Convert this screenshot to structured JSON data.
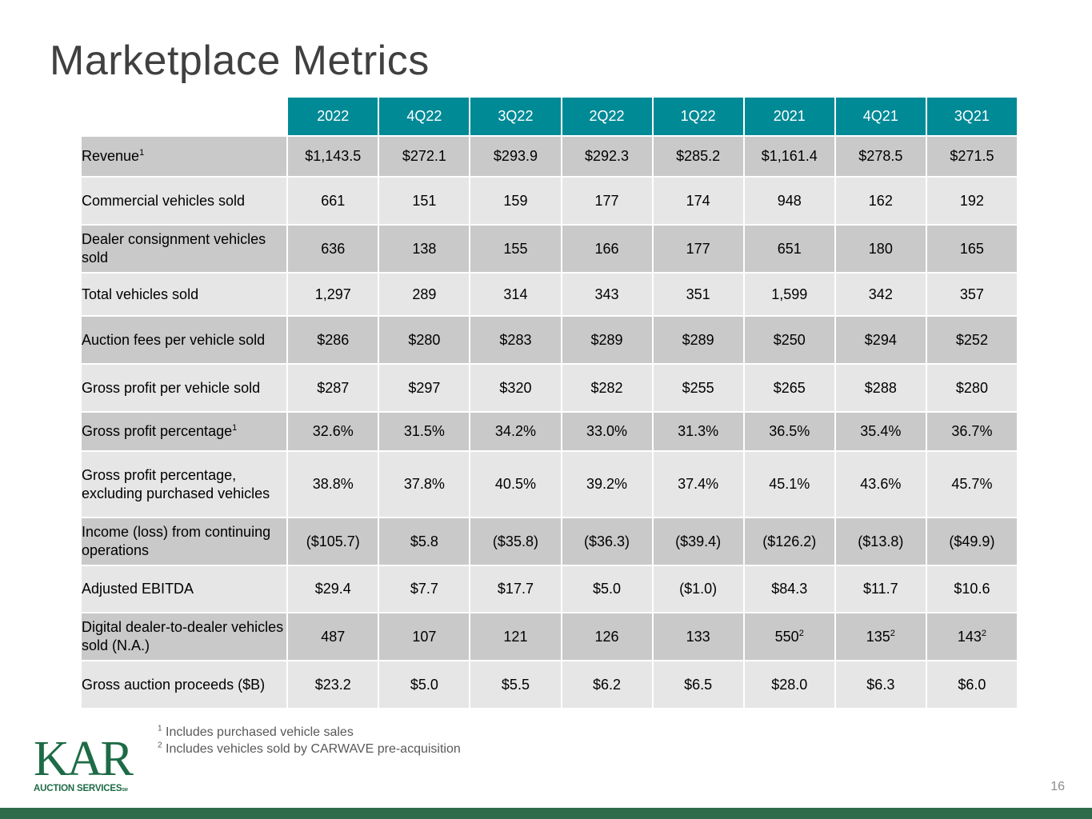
{
  "title": "Marketplace Metrics",
  "columns": [
    "2022",
    "4Q22",
    "3Q22",
    "2Q22",
    "1Q22",
    "2021",
    "4Q21",
    "3Q21"
  ],
  "rows": [
    {
      "label": "Revenue",
      "label_sup": "1",
      "shade": "dark",
      "height": 49,
      "values": [
        "$1,143.5",
        "$272.1",
        "$293.9",
        "$292.3",
        "$285.2",
        "$1,161.4",
        "$278.5",
        "$271.5"
      ],
      "sups": [
        "",
        "",
        "",
        "",
        "",
        "",
        "",
        ""
      ]
    },
    {
      "label": "Commercial vehicles sold",
      "label_sup": "",
      "shade": "light",
      "height": 58,
      "values": [
        "661",
        "151",
        "159",
        "177",
        "174",
        "948",
        "162",
        "192"
      ],
      "sups": [
        "",
        "",
        "",
        "",
        "",
        "",
        "",
        ""
      ]
    },
    {
      "label": "Dealer consignment vehicles sold",
      "label_sup": "",
      "shade": "dark",
      "height": 58,
      "values": [
        "636",
        "138",
        "155",
        "166",
        "177",
        "651",
        "180",
        "165"
      ],
      "sups": [
        "",
        "",
        "",
        "",
        "",
        "",
        "",
        ""
      ]
    },
    {
      "label": "Total vehicles sold",
      "label_sup": "",
      "shade": "light",
      "height": 52,
      "values": [
        "1,297",
        "289",
        "314",
        "343",
        "351",
        "1,599",
        "342",
        "357"
      ],
      "sups": [
        "",
        "",
        "",
        "",
        "",
        "",
        "",
        ""
      ]
    },
    {
      "label": "Auction fees per vehicle sold",
      "label_sup": "",
      "shade": "dark",
      "height": 58,
      "values": [
        "$286",
        "$280",
        "$283",
        "$289",
        "$289",
        "$250",
        "$294",
        "$252"
      ],
      "sups": [
        "",
        "",
        "",
        "",
        "",
        "",
        "",
        ""
      ]
    },
    {
      "label": "Gross profit per vehicle sold",
      "label_sup": "",
      "shade": "light",
      "height": 58,
      "values": [
        "$287",
        "$297",
        "$320",
        "$282",
        "$255",
        "$265",
        "$288",
        "$280"
      ],
      "sups": [
        "",
        "",
        "",
        "",
        "",
        "",
        "",
        ""
      ]
    },
    {
      "label": "Gross profit percentage",
      "label_sup": "1",
      "shade": "dark",
      "height": 47,
      "values": [
        "32.6%",
        "31.5%",
        "34.2%",
        "33.0%",
        "31.3%",
        "36.5%",
        "35.4%",
        "36.7%"
      ],
      "sups": [
        "",
        "",
        "",
        "",
        "",
        "",
        "",
        ""
      ]
    },
    {
      "label": "Gross profit percentage, excluding purchased vehicles",
      "label_sup": "",
      "shade": "light",
      "height": 81,
      "values": [
        "38.8%",
        "37.8%",
        "40.5%",
        "39.2%",
        "37.4%",
        "45.1%",
        "43.6%",
        "45.7%"
      ],
      "sups": [
        "",
        "",
        "",
        "",
        "",
        "",
        "",
        ""
      ]
    },
    {
      "label": "Income (loss) from continuing operations",
      "label_sup": "",
      "shade": "dark",
      "height": 58,
      "values": [
        "($105.7)",
        "$5.8",
        "($35.8)",
        "($36.3)",
        "($39.4)",
        "($126.2)",
        "($13.8)",
        "($49.9)"
      ],
      "sups": [
        "",
        "",
        "",
        "",
        "",
        "",
        "",
        ""
      ]
    },
    {
      "label": "Adjusted EBITDA",
      "label_sup": "",
      "shade": "light",
      "height": 57,
      "values": [
        "$29.4",
        "$7.7",
        "$17.7",
        "$5.0",
        "($1.0)",
        "$84.3",
        "$11.7",
        "$10.6"
      ],
      "sups": [
        "",
        "",
        "",
        "",
        "",
        "",
        "",
        ""
      ]
    },
    {
      "label": "Digital dealer-to-dealer vehicles sold (N.A.)",
      "label_sup": "",
      "shade": "dark",
      "height": 58,
      "values": [
        "487",
        "107",
        "121",
        "126",
        "133",
        "550",
        "135",
        "143"
      ],
      "sups": [
        "",
        "",
        "",
        "",
        "",
        "2",
        "2",
        "2"
      ]
    },
    {
      "label": "Gross auction proceeds ($B)",
      "label_sup": "",
      "shade": "light",
      "height": 58,
      "values": [
        "$23.2",
        "$5.0",
        "$5.5",
        "$6.2",
        "$6.5",
        "$28.0",
        "$6.3",
        "$6.0"
      ],
      "sups": [
        "",
        "",
        "",
        "",
        "",
        "",
        "",
        ""
      ]
    }
  ],
  "footnotes": [
    {
      "mark": "1",
      "text": "Includes purchased vehicle sales"
    },
    {
      "mark": "2",
      "text": "Includes vehicles sold by CARWAVE pre-acquisition"
    }
  ],
  "logo": {
    "wordmark": "KAR",
    "subtitle": "AUCTION SERVICES",
    "service_mark": "SM"
  },
  "page_number": "16",
  "colors": {
    "header": "#008a96",
    "row_dark": "#c9c9c9",
    "row_light": "#e6e6e6",
    "brand_green": "#1e6b47"
  }
}
